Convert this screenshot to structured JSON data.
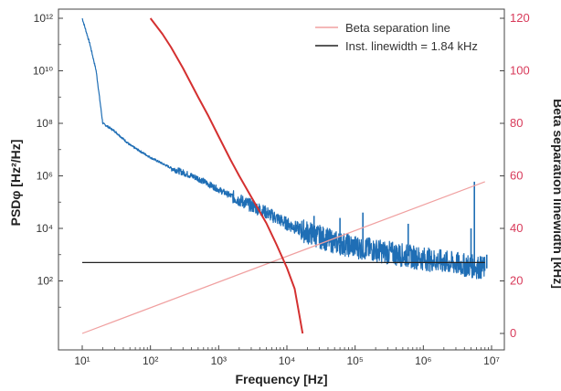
{
  "chart_data": {
    "type": "line",
    "xlabel": "Frequency [Hz]",
    "ylabel_left": "PSDφ [Hz²/Hz]",
    "ylabel_right": "Beta separation linewidth [kHz]",
    "x_scale": "log",
    "y_left_scale": "log",
    "xlim": [
      10,
      10000000
    ],
    "ylim_left": [
      1,
      1000000000000
    ],
    "ylim_right": [
      0,
      120
    ],
    "x_ticks": [
      {
        "value": 10,
        "label": "10¹"
      },
      {
        "value": 100,
        "label": "10²"
      },
      {
        "value": 1000,
        "label": "10³"
      },
      {
        "value": 10000,
        "label": "10⁴"
      },
      {
        "value": 100000,
        "label": "10⁵"
      },
      {
        "value": 1000000,
        "label": "10⁶"
      },
      {
        "value": 10000000,
        "label": "10⁷"
      }
    ],
    "y_left_ticks": [
      {
        "value": 100,
        "label": "10²"
      },
      {
        "value": 10000,
        "label": "10⁴"
      },
      {
        "value": 1000000,
        "label": "10⁶"
      },
      {
        "value": 100000000,
        "label": "10⁸"
      },
      {
        "value": 10000000000,
        "label": "10¹⁰"
      },
      {
        "value": 1000000000000,
        "label": "10¹²"
      }
    ],
    "y_right_ticks": [
      {
        "value": 0,
        "label": "0"
      },
      {
        "value": 20,
        "label": "20"
      },
      {
        "value": 40,
        "label": "40"
      },
      {
        "value": 60,
        "label": "60"
      },
      {
        "value": 80,
        "label": "80"
      },
      {
        "value": 100,
        "label": "100"
      },
      {
        "value": 120,
        "label": "120"
      }
    ],
    "legend": {
      "position": "top-right",
      "entries": [
        {
          "label": "Beta separation line",
          "color": "#f0a0a0"
        },
        {
          "label": "Inst. linewidth = 1.84 kHz",
          "color": "#222222"
        }
      ]
    },
    "series": [
      {
        "id": "psd",
        "axis": "left",
        "color": "#1f6eb5",
        "noisy": true,
        "x": [
          10,
          13,
          16,
          20,
          30,
          50,
          100,
          200,
          500,
          1000,
          2000,
          5000,
          10000,
          20000,
          50000,
          100000,
          300000,
          1000000,
          3000000,
          8000000
        ],
        "y": [
          1000000000000.0,
          100000000000.0,
          10000000000.0,
          100000000.0,
          50000000.0,
          15000000.0,
          5000000.0,
          2000000.0,
          800000.0,
          300000.0,
          120000.0,
          40000.0,
          15000.0,
          7000,
          3000,
          2000,
          1200,
          700,
          450,
          300
        ],
        "spikes": [
          {
            "x": 25000,
            "y": 30000
          },
          {
            "x": 60000,
            "y": 25000
          },
          {
            "x": 130000,
            "y": 40000
          },
          {
            "x": 600000,
            "y": 15000
          },
          {
            "x": 5000000,
            "y": 10000
          },
          {
            "x": 5600000,
            "y": 600000
          },
          {
            "x": 8500000,
            "y": 1000
          }
        ]
      },
      {
        "id": "beta-separation",
        "axis": "left",
        "color": "#f0a0a0",
        "x": [
          10,
          8000000
        ],
        "y": [
          1,
          600000
        ]
      },
      {
        "id": "inst-linewidth",
        "axis": "left",
        "color": "#222222",
        "x": [
          10,
          8000000
        ],
        "y": [
          500,
          500
        ]
      },
      {
        "id": "beta-linewidth",
        "axis": "right",
        "color": "#d43030",
        "x": [
          100,
          150,
          200,
          300,
          500,
          700,
          1000,
          1500,
          2000,
          3000,
          5000,
          7000,
          10000,
          13000,
          15000,
          17000
        ],
        "y": [
          120,
          114,
          109,
          101,
          90,
          83,
          75,
          66,
          60,
          52,
          42,
          34,
          25,
          17,
          8,
          0
        ]
      }
    ],
    "colors": {
      "right_axis": "#d83a5a"
    }
  }
}
